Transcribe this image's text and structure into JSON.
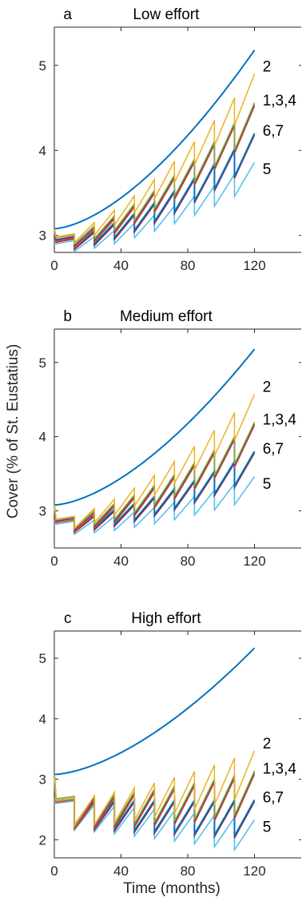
{
  "figure": {
    "ylabel": "Cover (% of St. Eustatius)",
    "xlabel": "Time (months)"
  },
  "colors": {
    "baseline": "#0072BD",
    "s2": "#EDB120",
    "s1": "#D95319",
    "s3": "#7E2F8E",
    "s4": "#77AC30",
    "s6": "#A2142F",
    "s7": "#0072BD",
    "s5": "#4DBEEE"
  },
  "chart_data": [
    {
      "type": "line",
      "panel_letter": "a",
      "title": "Low effort",
      "xlim": [
        0,
        148
      ],
      "ylim": [
        2.8,
        5.45
      ],
      "xticks": [
        0,
        40,
        80,
        120
      ],
      "yticks": [
        3,
        4,
        5
      ],
      "baseline": {
        "start": 3.08,
        "end": 5.18
      },
      "series": [
        {
          "label": "2",
          "ids": [
            "s2"
          ],
          "start": 2.98,
          "end": 4.9,
          "drop_start": 0.1,
          "drop_end": 0.35
        },
        {
          "label": "1,3,4",
          "ids": [
            "s1",
            "s3",
            "s4"
          ],
          "start": 2.93,
          "end": 4.52,
          "drop_start": 0.1,
          "drop_end": 0.35
        },
        {
          "label": "6,7",
          "ids": [
            "s6",
            "s7"
          ],
          "start": 2.92,
          "end": 4.18,
          "drop_start": 0.1,
          "drop_end": 0.35
        },
        {
          "label": "5",
          "ids": [
            "s5"
          ],
          "start": 2.9,
          "end": 3.86,
          "drop_start": 0.1,
          "drop_end": 0.28
        }
      ]
    },
    {
      "type": "line",
      "panel_letter": "b",
      "title": "Medium effort",
      "xlim": [
        0,
        148
      ],
      "ylim": [
        2.5,
        5.45
      ],
      "xticks": [
        0,
        40,
        80,
        120
      ],
      "yticks": [
        3,
        4,
        5
      ],
      "baseline": {
        "start": 3.08,
        "end": 5.18
      },
      "series": [
        {
          "label": "2",
          "ids": [
            "s2"
          ],
          "start": 2.88,
          "end": 4.57,
          "drop_start": 0.14,
          "drop_end": 0.4
        },
        {
          "label": "1,3,4",
          "ids": [
            "s1",
            "s3",
            "s4"
          ],
          "start": 2.84,
          "end": 4.15,
          "drop_start": 0.14,
          "drop_end": 0.4
        },
        {
          "label": "6,7",
          "ids": [
            "s6",
            "s7"
          ],
          "start": 2.84,
          "end": 3.78,
          "drop_start": 0.14,
          "drop_end": 0.35
        },
        {
          "label": "5",
          "ids": [
            "s5"
          ],
          "start": 2.82,
          "end": 3.46,
          "drop_start": 0.14,
          "drop_end": 0.3
        }
      ]
    },
    {
      "type": "line",
      "panel_letter": "c",
      "title": "High effort",
      "xlim": [
        0,
        148
      ],
      "ylim": [
        1.7,
        5.45
      ],
      "xticks": [
        0,
        40,
        80,
        120
      ],
      "yticks": [
        2,
        3,
        4,
        5
      ],
      "baseline": {
        "start": 3.08,
        "end": 5.17
      },
      "series": [
        {
          "label": "2",
          "ids": [
            "s2"
          ],
          "start": 2.65,
          "end": 3.47,
          "drop_start": 0.42,
          "drop_end": 0.72
        },
        {
          "label": "1,3,4",
          "ids": [
            "s1",
            "s3",
            "s4"
          ],
          "start": 2.62,
          "end": 3.08,
          "drop_start": 0.42,
          "drop_end": 0.7
        },
        {
          "label": "6,7",
          "ids": [
            "s6",
            "s7"
          ],
          "start": 2.62,
          "end": 2.63,
          "drop_start": 0.42,
          "drop_end": 0.62
        },
        {
          "label": "5",
          "ids": [
            "s5"
          ],
          "start": 2.6,
          "end": 2.33,
          "drop_start": 0.42,
          "drop_end": 0.55
        }
      ]
    }
  ]
}
